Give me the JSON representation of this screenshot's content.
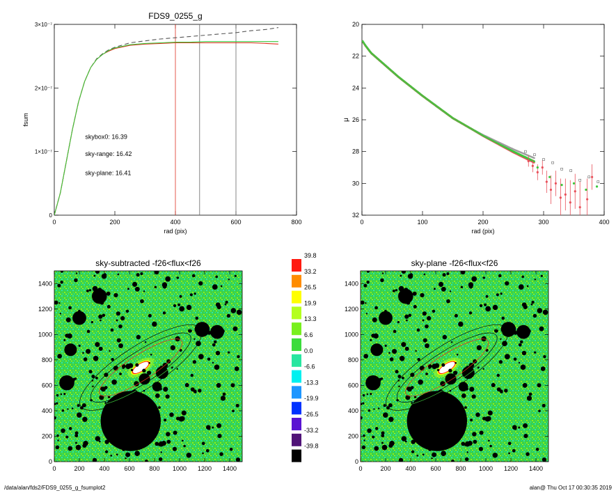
{
  "footer": {
    "left": "/data/alan/fds2/FDS9_0255_g_fsumplot2",
    "right": "alan@  Thu Oct 17 00:30:35 2019"
  },
  "colors": {
    "measured_curve": "#555555",
    "sky_range": "#e03020",
    "sky_plane": "#3cc83c",
    "marker_red": "#e8505a",
    "marker_gray": "#9a9a9a"
  },
  "chart_data": [
    {
      "type": "line",
      "title": "FDS9_0255_g",
      "xlabel": "rad (pix)",
      "ylabel": "fsum",
      "xlim": [
        0,
        800
      ],
      "ylim": [
        0,
        3e-07
      ],
      "xticks": [
        0,
        200,
        400,
        600,
        800
      ],
      "ytick_labels": [
        {
          "value": 0,
          "label": "0"
        },
        {
          "value": 1e-07,
          "label": "1×10⁻⁷"
        },
        {
          "value": 2e-07,
          "label": "2×10⁻⁷"
        },
        {
          "value": 3e-07,
          "label": "3×10⁻⁷"
        }
      ],
      "series": [
        {
          "color": "#555555",
          "dash": true,
          "x": [
            0,
            20,
            40,
            60,
            80,
            100,
            120,
            140,
            160,
            180,
            200,
            250,
            300,
            350,
            400,
            450,
            500,
            550,
            600,
            650,
            700,
            740
          ],
          "y": [
            0,
            3.5e-08,
            8.5e-08,
            1.35e-07,
            1.78e-07,
            2.1e-07,
            2.32e-07,
            2.46e-07,
            2.54e-07,
            2.6e-07,
            2.64e-07,
            2.71e-07,
            2.74e-07,
            2.77e-07,
            2.79e-07,
            2.81e-07,
            2.83e-07,
            2.85e-07,
            2.87e-07,
            2.9e-07,
            2.92e-07,
            2.95e-07
          ]
        },
        {
          "color": "#e03020",
          "x": [
            0,
            20,
            40,
            60,
            80,
            100,
            120,
            140,
            160,
            180,
            200,
            250,
            300,
            350,
            400,
            450,
            500,
            550,
            600,
            650,
            700,
            740
          ],
          "y": [
            0,
            3.5e-08,
            8.5e-08,
            1.35e-07,
            1.78e-07,
            2.1e-07,
            2.32e-07,
            2.45e-07,
            2.53e-07,
            2.58e-07,
            2.62e-07,
            2.67e-07,
            2.69e-07,
            2.7e-07,
            2.71e-07,
            2.71e-07,
            2.71e-07,
            2.71e-07,
            2.71e-07,
            2.71e-07,
            2.7e-07,
            2.69e-07
          ]
        },
        {
          "color": "#3cc83c",
          "x": [
            0,
            20,
            40,
            60,
            80,
            100,
            120,
            140,
            160,
            180,
            200,
            250,
            300,
            350,
            400,
            450,
            500,
            550,
            600,
            650,
            700,
            740
          ],
          "y": [
            0,
            3.5e-08,
            8.5e-08,
            1.35e-07,
            1.78e-07,
            2.1e-07,
            2.32e-07,
            2.45e-07,
            2.53e-07,
            2.59e-07,
            2.63e-07,
            2.68e-07,
            2.7e-07,
            2.71e-07,
            2.72e-07,
            2.72e-07,
            2.73e-07,
            2.73e-07,
            2.73e-07,
            2.73e-07,
            2.73e-07,
            2.73e-07
          ]
        }
      ],
      "vlines": [
        {
          "x": 400,
          "color": "#e03020"
        },
        {
          "x": 480,
          "color": "#666666"
        },
        {
          "x": 600,
          "color": "#666666"
        }
      ],
      "annotations": [
        {
          "text": "skybox0: 16.39",
          "color": "#000000",
          "x": 240,
          "y": 1.2e-07
        },
        {
          "text": "sky-range: 16.42",
          "color": "#e03020",
          "x": 240,
          "y": 9.3e-08
        },
        {
          "text": "sky-plane: 16.41",
          "color": "#3cc83c",
          "x": 240,
          "y": 6.3e-08
        }
      ]
    },
    {
      "type": "scatter",
      "title": "",
      "xlabel": "rad (pix)",
      "ylabel": "μ",
      "xlim": [
        0,
        400
      ],
      "ylim": [
        32,
        20
      ],
      "xticks": [
        0,
        100,
        200,
        300,
        400
      ],
      "yticks": [
        20,
        22,
        24,
        26,
        28,
        30,
        32
      ],
      "profile": [
        [
          0,
          21.0
        ],
        [
          5,
          21.3
        ],
        [
          15,
          21.8
        ],
        [
          30,
          22.3
        ],
        [
          60,
          23.3
        ],
        [
          100,
          24.5
        ],
        [
          150,
          25.9
        ],
        [
          200,
          27.0
        ],
        [
          250,
          28.0
        ],
        [
          300,
          28.9
        ],
        [
          350,
          29.8
        ],
        [
          390,
          30.5
        ]
      ],
      "outer_points": [
        {
          "x": 275,
          "y": 28.6,
          "color": "#e8505a",
          "err": 0.35
        },
        {
          "x": 282,
          "y": 28.9,
          "color": "#e8505a",
          "err": 0.4
        },
        {
          "x": 290,
          "y": 29.3,
          "color": "#e8505a",
          "err": 0.5
        },
        {
          "x": 298,
          "y": 29.0,
          "color": "#e8505a",
          "err": 0.45
        },
        {
          "x": 305,
          "y": 29.9,
          "color": "#e8505a",
          "err": 0.7
        },
        {
          "x": 312,
          "y": 30.4,
          "color": "#e8505a",
          "err": 0.9
        },
        {
          "x": 320,
          "y": 30.0,
          "color": "#e8505a",
          "err": 0.8
        },
        {
          "x": 328,
          "y": 30.9,
          "color": "#e8505a",
          "err": 1.2
        },
        {
          "x": 336,
          "y": 30.7,
          "color": "#e8505a",
          "err": 1.0
        },
        {
          "x": 344,
          "y": 31.2,
          "color": "#e8505a",
          "err": 1.4
        },
        {
          "x": 352,
          "y": 30.5,
          "color": "#e8505a",
          "err": 1.1
        },
        {
          "x": 360,
          "y": 31.5,
          "color": "#e8505a",
          "err": 1.6
        },
        {
          "x": 372,
          "y": 31.0,
          "color": "#e8505a",
          "err": 1.3
        },
        {
          "x": 380,
          "y": 29.6,
          "color": "#e8505a",
          "err": 0.8
        },
        {
          "x": 270,
          "y": 28.0,
          "color": "#9a9a9a"
        },
        {
          "x": 285,
          "y": 28.2,
          "color": "#9a9a9a"
        },
        {
          "x": 300,
          "y": 28.5,
          "color": "#9a9a9a"
        },
        {
          "x": 315,
          "y": 28.7,
          "color": "#9a9a9a"
        },
        {
          "x": 330,
          "y": 29.1,
          "color": "#9a9a9a"
        },
        {
          "x": 345,
          "y": 29.2,
          "color": "#9a9a9a"
        },
        {
          "x": 360,
          "y": 29.8,
          "color": "#9a9a9a"
        },
        {
          "x": 375,
          "y": 29.6,
          "color": "#9a9a9a"
        },
        {
          "x": 390,
          "y": 29.9,
          "color": "#9a9a9a"
        },
        {
          "x": 290,
          "y": 29.0,
          "color": "#3cc83c"
        },
        {
          "x": 310,
          "y": 29.6,
          "color": "#3cc83c"
        },
        {
          "x": 330,
          "y": 30.1,
          "color": "#3cc83c"
        },
        {
          "x": 350,
          "y": 30.0,
          "color": "#3cc83c"
        },
        {
          "x": 370,
          "y": 30.4,
          "color": "#3cc83c"
        },
        {
          "x": 388,
          "y": 30.2,
          "color": "#3cc83c"
        }
      ]
    },
    {
      "type": "heatmap",
      "title": "sky-subtracted -f26<flux<f26",
      "xlim": [
        0,
        1500
      ],
      "ylim": [
        0,
        1500
      ],
      "xticks": [
        0,
        200,
        400,
        600,
        800,
        1000,
        1200,
        1400
      ],
      "yticks": [
        0,
        200,
        400,
        600,
        800,
        1000,
        1200,
        1400
      ]
    },
    {
      "type": "heatmap",
      "title": "sky-plane -f26<flux<f26",
      "xlim": [
        0,
        1500
      ],
      "ylim": [
        0,
        1500
      ],
      "xticks": [
        0,
        200,
        400,
        600,
        800,
        1000,
        1200,
        1400
      ],
      "yticks": [
        0,
        200,
        400,
        600,
        800,
        1000,
        1200,
        1400
      ]
    }
  ],
  "colorbar": {
    "labels": [
      "39.8",
      "33.2",
      "26.5",
      "19.9",
      "13.3",
      "6.6",
      "0.0",
      "-6.6",
      "-13.3",
      "-19.9",
      "-26.5",
      "-33.2",
      "-39.8"
    ],
    "colors": [
      "#ff1a10",
      "#ff8c00",
      "#ffff00",
      "#b4ff1e",
      "#78f01e",
      "#3cdc3c",
      "#28e6a0",
      "#00f0f0",
      "#1e96ff",
      "#0032ff",
      "#5a14d2",
      "#501478",
      "#000000"
    ]
  },
  "masks": {
    "big": [
      [
        610,
        320,
        240
      ],
      [
        1180,
        1040,
        60
      ],
      [
        1300,
        1020,
        55
      ],
      [
        360,
        1300,
        60
      ],
      [
        200,
        1130,
        55
      ],
      [
        130,
        880,
        50
      ],
      [
        100,
        620,
        60
      ],
      [
        860,
        700,
        50
      ],
      [
        720,
        650,
        45
      ],
      [
        820,
        590,
        38
      ]
    ],
    "ellipses": [
      {
        "cx": 690,
        "cy": 740,
        "rx": 570,
        "ry": 170,
        "angle": 33,
        "color": "#000000"
      },
      {
        "cx": 690,
        "cy": 740,
        "rx": 470,
        "ry": 125,
        "angle": 33,
        "color": "#000000"
      },
      {
        "cx": 690,
        "cy": 740,
        "rx": 390,
        "ry": 100,
        "angle": 33,
        "color": "#e03020"
      },
      {
        "cx": 690,
        "cy": 740,
        "rx": 520,
        "ry": 140,
        "angle": 33,
        "color": "#3cc83c"
      }
    ]
  }
}
